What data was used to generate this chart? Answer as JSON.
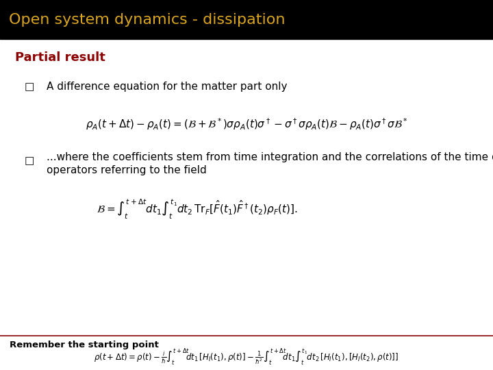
{
  "title": "Open system dynamics - dissipation",
  "title_color": "#DAA520",
  "title_bg_color": "#000000",
  "title_fontsize": 16,
  "section_title": "Partial result",
  "section_title_color": "#8B0000",
  "section_title_fontsize": 13,
  "bullet1_text": "A difference equation for the matter part only",
  "bullet1_fontsize": 11,
  "eq1_fontsize": 11,
  "bullet2_line1": "...where the coefficients stem from time integration and the correlations of the time dependent",
  "bullet2_line2": "operators referring to the field",
  "bullet2_fontsize": 11,
  "eq2_fontsize": 11,
  "footer_text": "Remember the starting point",
  "footer_fontsize": 8.5,
  "footer_color": "#000000",
  "bg_color": "#FFFFFF",
  "divider_color": "#8B0000",
  "text_color": "#000000"
}
